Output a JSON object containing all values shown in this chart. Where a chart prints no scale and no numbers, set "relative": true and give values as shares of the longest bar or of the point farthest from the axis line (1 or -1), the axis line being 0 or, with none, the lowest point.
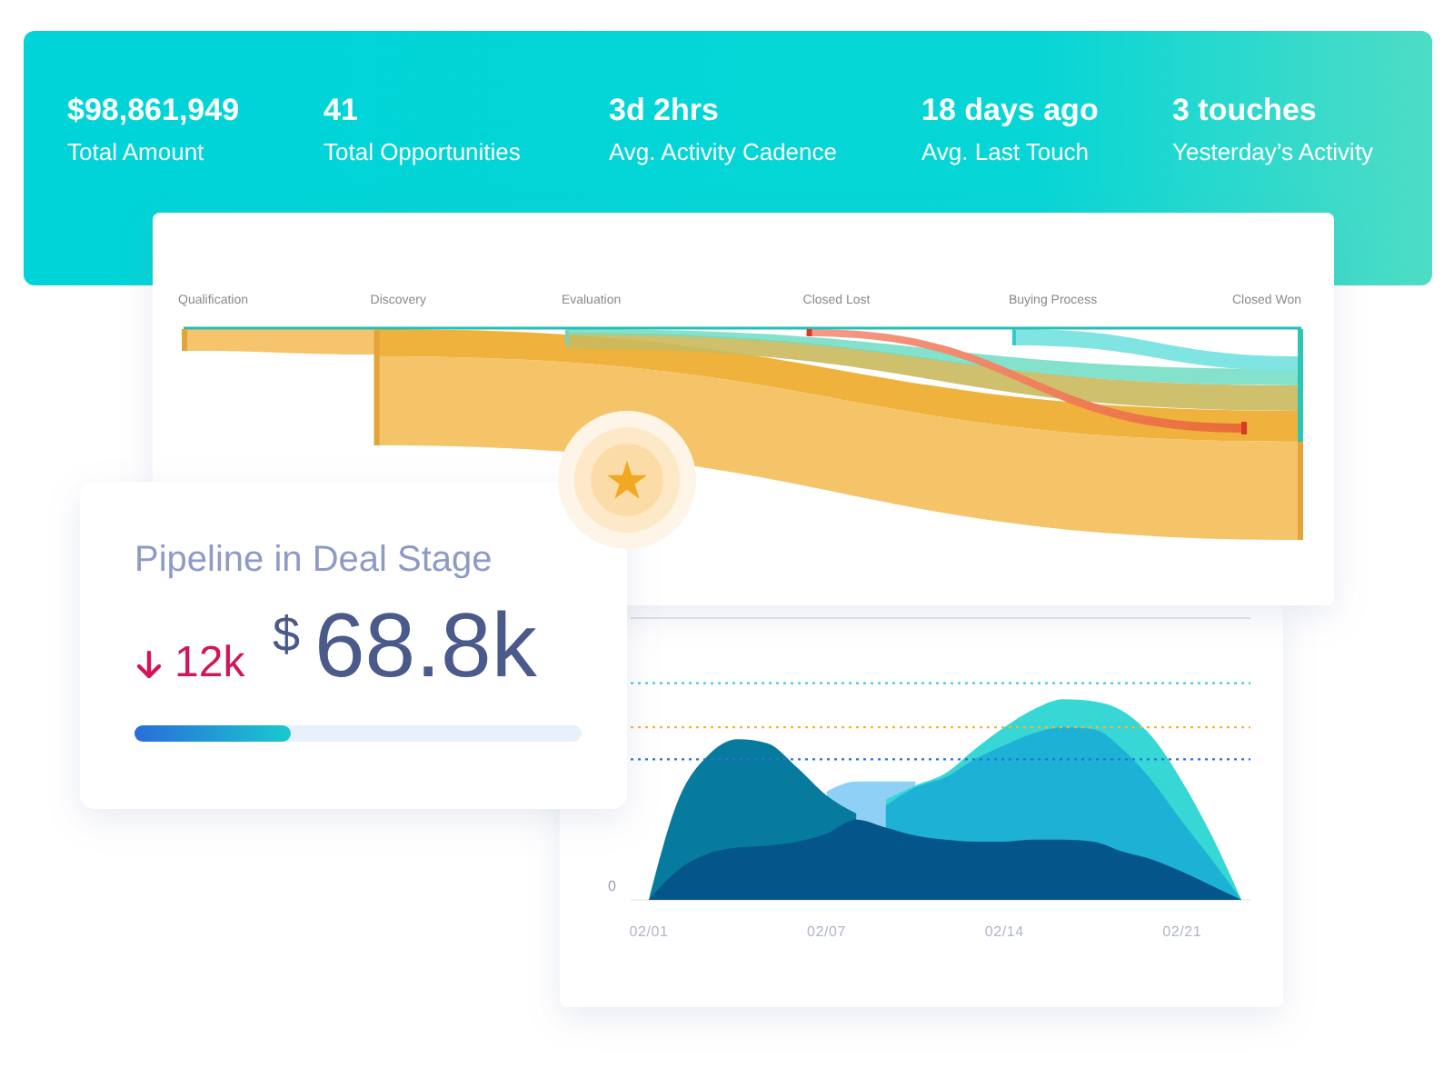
{
  "chart_data": [
    {
      "type": "other",
      "annotations": [
        "$98,861,949",
        "Total Amount",
        "41",
        "Total Opportunities",
        "3d 2hrs",
        "Avg. Activity Cadence",
        "18 days ago",
        "Avg. Last Touch",
        "3 touches",
        "Yesterday’s Activity"
      ]
    },
    {
      "type": "other",
      "categories": [
        "Qualification",
        "Discovery",
        "Evaluation",
        "Closed Lost",
        "Buying Process",
        "Closed Won"
      ]
    },
    {
      "type": "other",
      "title": "Pipeline in Deal Stage",
      "annotations": [
        "12k",
        "$",
        "68.8k"
      ]
    },
    {
      "type": "area",
      "relative": true,
      "categories": [
        "02/01",
        null,
        null,
        null,
        null,
        null,
        "02/07",
        null,
        null,
        null,
        null,
        null,
        "02/14",
        null,
        null,
        null,
        null,
        null,
        "02/21",
        null,
        null
      ],
      "series": [
        {
          "color": "#8fd1f6",
          "values": [
            null,
            null,
            null,
            null,
            null,
            null,
            0.54,
            0.59,
            0.59,
            0.59,
            null,
            null,
            null,
            null,
            null,
            null,
            null,
            null,
            null,
            null,
            null
          ]
        },
        {
          "color": "#36d7d4",
          "values": [
            null,
            null,
            null,
            null,
            null,
            null,
            null,
            null,
            0.5,
            0.57,
            0.63,
            0.75,
            0.86,
            0.95,
            1,
            0.99,
            0.94,
            0.81,
            0.59,
            0.32,
            0
          ]
        },
        {
          "color": "#1db1d6",
          "values": [
            null,
            null,
            null,
            null,
            null,
            null,
            null,
            null,
            0.47,
            0.56,
            0.61,
            0.7,
            0.77,
            0.83,
            0.86,
            0.85,
            0.75,
            0.59,
            0.39,
            0.2,
            0
          ]
        },
        {
          "color": "#067b9e",
          "values": [
            0,
            0.5,
            0.72,
            0.8,
            0.78,
            0.66,
            0.52,
            0.43,
            null,
            null,
            null,
            null,
            null,
            null,
            null,
            null,
            null,
            null,
            null,
            null,
            null
          ]
        },
        {
          "color": "#03558a",
          "values": [
            0,
            0.15,
            0.23,
            0.26,
            0.27,
            0.29,
            0.33,
            0.4,
            0.36,
            0.32,
            0.3,
            0.29,
            0.29,
            0.3,
            0.3,
            0.29,
            0.24,
            0.2,
            0.14,
            0.07,
            0
          ]
        }
      ],
      "ref_lines": [
        {
          "axis": "y",
          "value": 1.08,
          "color": "#3ccbd6",
          "line_style": "dotted"
        },
        {
          "axis": "y",
          "value": 0.86,
          "color": "#f6b23a",
          "line_style": "dotted"
        },
        {
          "axis": "y",
          "value": 0.7,
          "color": "#2f6fd8",
          "line_style": "dotted"
        }
      ],
      "annotations": [
        "0"
      ]
    }
  ]
}
